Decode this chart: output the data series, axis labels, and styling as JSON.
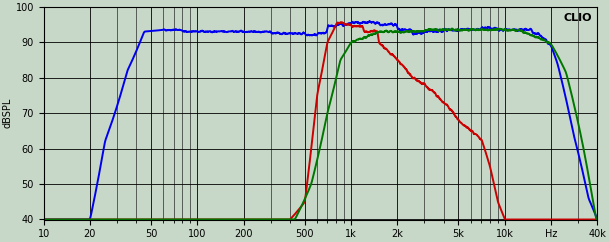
{
  "title": "CLIO",
  "ylabel": "dBSPL",
  "xlabel_ticks": [
    "10",
    "20",
    "50",
    "100",
    "200",
    "500",
    "1k",
    "2k",
    "5k",
    "10k",
    "Hz",
    "40k"
  ],
  "xlabel_vals": [
    10,
    20,
    50,
    100,
    200,
    500,
    1000,
    2000,
    5000,
    10000,
    20000,
    40000
  ],
  "xmin": 10,
  "xmax": 40000,
  "ymin": 40,
  "ymax": 100,
  "yticks": [
    40,
    50,
    60,
    70,
    80,
    90,
    100
  ],
  "background_color": "#c8d8c8",
  "grid_color": "#000000",
  "blue_color": "#0000ee",
  "red_color": "#cc0000",
  "green_color": "#007700",
  "clio_text_color": "#000000",
  "line_width": 1.4
}
